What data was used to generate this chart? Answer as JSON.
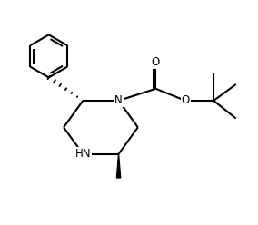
{
  "bg_color": "#ffffff",
  "line_color": "#000000",
  "line_width": 1.5,
  "fig_width": 2.84,
  "fig_height": 2.48,
  "dpi": 100,
  "xlim": [
    0,
    8.5
  ],
  "ylim": [
    -0.5,
    7.0
  ]
}
